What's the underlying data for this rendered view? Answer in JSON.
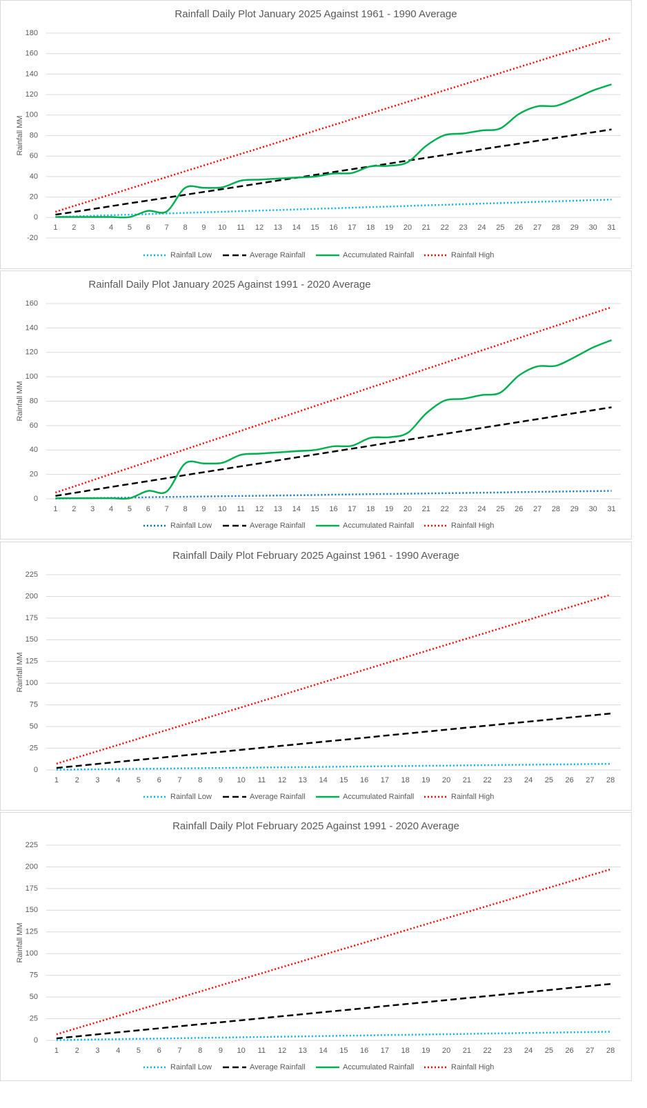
{
  "chart_data": [
    {
      "type": "line",
      "title": "Rainfall Daily Plot January 2025 Against 1961 - 1990 Average",
      "y_label": "Rainfall MM",
      "categories": [
        1,
        2,
        3,
        4,
        5,
        6,
        7,
        8,
        9,
        10,
        11,
        12,
        13,
        14,
        15,
        16,
        17,
        18,
        19,
        20,
        21,
        22,
        23,
        24,
        25,
        26,
        27,
        28,
        29,
        30,
        31
      ],
      "ylim": [
        -20,
        180
      ],
      "yticks": [
        -20,
        0,
        20,
        40,
        60,
        80,
        100,
        120,
        140,
        160,
        180
      ],
      "grid": true,
      "legend": "bottom",
      "series": [
        {
          "name": "Rainfall Low",
          "color": "#00b0f0",
          "dash": "dotted",
          "values": [
            0.6,
            1.1,
            1.7,
            2.3,
            2.8,
            3.4,
            4.0,
            4.5,
            5.1,
            5.6,
            6.2,
            6.8,
            7.3,
            7.9,
            8.5,
            9.0,
            9.6,
            10.2,
            10.7,
            11.3,
            11.9,
            12.4,
            13.0,
            13.6,
            14.1,
            14.7,
            15.3,
            15.8,
            16.4,
            17.0,
            17.5
          ]
        },
        {
          "name": "Average Rainfall",
          "color": "#000000",
          "dash": "dashed",
          "values": [
            2.8,
            5.5,
            8.3,
            11.1,
            13.9,
            16.6,
            19.4,
            22.2,
            25.0,
            27.7,
            30.5,
            33.3,
            36.1,
            38.8,
            41.6,
            44.4,
            47.2,
            49.9,
            52.7,
            55.5,
            58.3,
            61.0,
            63.8,
            66.6,
            69.4,
            72.1,
            74.9,
            77.7,
            80.5,
            83.2,
            86.0
          ]
        },
        {
          "name": "Accumulated Rainfall",
          "color": "#00b050",
          "dash": "solid",
          "values": [
            0.5,
            0.5,
            0.5,
            0.5,
            0.5,
            6.5,
            6,
            29,
            29,
            29.5,
            36,
            37,
            38,
            39,
            40,
            43,
            43.5,
            50,
            50.5,
            54,
            70,
            80.5,
            82,
            85,
            87,
            101,
            108.5,
            109,
            116,
            124,
            130
          ]
        },
        {
          "name": "Rainfall High",
          "color": "#ff0000",
          "dash": "dotted",
          "values": [
            5.6,
            11.3,
            16.9,
            22.6,
            28.2,
            33.9,
            39.5,
            45.2,
            50.8,
            56.5,
            62.1,
            67.7,
            73.4,
            79.0,
            84.7,
            90.3,
            96.0,
            101.6,
            107.3,
            112.9,
            118.5,
            124.2,
            129.8,
            135.5,
            141.1,
            146.8,
            152.4,
            158.1,
            163.7,
            169.4,
            175.0
          ]
        }
      ]
    },
    {
      "type": "line",
      "title": "Rainfall Daily Plot January 2025 Against 1991 - 2020 Average",
      "y_label": "Rainfall MM",
      "categories": [
        1,
        2,
        3,
        4,
        5,
        6,
        7,
        8,
        9,
        10,
        11,
        12,
        13,
        14,
        15,
        16,
        17,
        18,
        19,
        20,
        21,
        22,
        23,
        24,
        25,
        26,
        27,
        28,
        29,
        30,
        31
      ],
      "ylim": [
        0,
        160
      ],
      "yticks": [
        0,
        20,
        40,
        60,
        80,
        100,
        120,
        140,
        160
      ],
      "grid": true,
      "legend": "bottom",
      "series": [
        {
          "name": "Rainfall Low",
          "color": "#0070c0",
          "dash": "dotted",
          "values": [
            0.2,
            0.4,
            0.6,
            0.8,
            1.0,
            1.3,
            1.5,
            1.7,
            1.9,
            2.1,
            2.3,
            2.5,
            2.7,
            2.9,
            3.1,
            3.4,
            3.6,
            3.8,
            4.0,
            4.2,
            4.4,
            4.6,
            4.8,
            5.0,
            5.2,
            5.5,
            5.7,
            5.9,
            6.1,
            6.3,
            6.5
          ]
        },
        {
          "name": "Average Rainfall",
          "color": "#000000",
          "dash": "dashed",
          "values": [
            2.4,
            4.8,
            7.3,
            9.7,
            12.1,
            14.5,
            16.9,
            19.4,
            21.8,
            24.2,
            26.6,
            29.0,
            31.5,
            33.9,
            36.3,
            38.7,
            41.1,
            43.5,
            46.0,
            48.4,
            50.8,
            53.2,
            55.6,
            58.1,
            60.5,
            62.9,
            65.3,
            67.7,
            70.2,
            72.6,
            75.0
          ]
        },
        {
          "name": "Accumulated Rainfall",
          "color": "#00b050",
          "dash": "solid",
          "values": [
            0.5,
            0.5,
            0.5,
            0.5,
            0.5,
            6.5,
            6,
            29,
            29,
            29.5,
            36,
            37,
            38,
            39,
            40,
            43,
            43.5,
            50,
            50.5,
            54,
            70,
            80.5,
            82,
            85,
            87,
            101,
            108.5,
            109,
            116,
            124,
            130
          ]
        },
        {
          "name": "Rainfall High",
          "color": "#ff0000",
          "dash": "dotted",
          "values": [
            5.1,
            10.1,
            15.2,
            20.3,
            25.3,
            30.4,
            35.5,
            40.5,
            45.6,
            50.6,
            55.7,
            60.8,
            65.8,
            70.9,
            76.0,
            81.0,
            86.1,
            91.2,
            96.2,
            101.3,
            106.4,
            111.4,
            116.5,
            121.6,
            126.6,
            131.7,
            136.8,
            141.8,
            146.9,
            152.0,
            157.0
          ]
        }
      ]
    },
    {
      "type": "line",
      "title": "Rainfall Daily Plot February 2025 Against 1961 - 1990 Average",
      "y_label": "Rainfall MM",
      "categories": [
        1,
        2,
        3,
        4,
        5,
        6,
        7,
        8,
        9,
        10,
        11,
        12,
        13,
        14,
        15,
        16,
        17,
        18,
        19,
        20,
        21,
        22,
        23,
        24,
        25,
        26,
        27,
        28
      ],
      "ylim": [
        0,
        225
      ],
      "yticks": [
        0,
        25,
        50,
        75,
        100,
        125,
        150,
        175,
        200,
        225
      ],
      "grid": true,
      "legend": "bottom",
      "series": [
        {
          "name": "Rainfall Low",
          "color": "#00b0f0",
          "dash": "dotted",
          "values": [
            0.3,
            0.5,
            0.8,
            1.0,
            1.3,
            1.5,
            1.8,
            2.0,
            2.3,
            2.5,
            2.8,
            3.0,
            3.3,
            3.5,
            3.8,
            4.0,
            4.3,
            4.5,
            4.8,
            5.0,
            5.3,
            5.5,
            5.8,
            6.0,
            6.3,
            6.5,
            6.8,
            7.0
          ]
        },
        {
          "name": "Average Rainfall",
          "color": "#000000",
          "dash": "dashed",
          "values": [
            2.3,
            4.6,
            7.0,
            9.3,
            11.6,
            13.9,
            16.3,
            18.6,
            20.9,
            23.2,
            25.5,
            27.9,
            30.2,
            32.5,
            34.8,
            37.1,
            39.5,
            41.8,
            44.1,
            46.4,
            48.8,
            51.1,
            53.4,
            55.7,
            58.0,
            60.4,
            62.7,
            65.0
          ]
        },
        {
          "name": "Accumulated Rainfall",
          "color": "#00b050",
          "dash": "solid",
          "values": [
            null,
            null,
            null,
            null,
            null,
            null,
            null,
            null,
            null,
            null,
            null,
            null,
            null,
            null,
            null,
            null,
            null,
            null,
            null,
            null,
            null,
            null,
            null,
            null,
            null,
            null,
            null,
            null
          ]
        },
        {
          "name": "Rainfall High",
          "color": "#ff0000",
          "dash": "dotted",
          "values": [
            7.2,
            14.4,
            21.6,
            28.8,
            36.1,
            43.3,
            50.5,
            57.7,
            64.9,
            72.1,
            79.3,
            86.5,
            93.7,
            101.0,
            108.2,
            115.4,
            122.6,
            129.8,
            137.0,
            144.2,
            151.4,
            158.6,
            165.8,
            173.0,
            180.3,
            187.5,
            194.7,
            201.9
          ]
        }
      ]
    },
    {
      "type": "line",
      "title": "Rainfall Daily Plot February 2025 Against 1991 - 2020 Average",
      "y_label": "Rainfall MM",
      "categories": [
        1,
        2,
        3,
        4,
        5,
        6,
        7,
        8,
        9,
        10,
        11,
        12,
        13,
        14,
        15,
        16,
        17,
        18,
        19,
        20,
        21,
        22,
        23,
        24,
        25,
        26,
        27,
        28
      ],
      "ylim": [
        0,
        225
      ],
      "yticks": [
        0,
        25,
        50,
        75,
        100,
        125,
        150,
        175,
        200,
        225
      ],
      "grid": true,
      "legend": "bottom",
      "series": [
        {
          "name": "Rainfall Low",
          "color": "#00b0f0",
          "dash": "dotted",
          "values": [
            0.4,
            0.7,
            1.1,
            1.4,
            1.8,
            2.1,
            2.5,
            2.9,
            3.2,
            3.6,
            3.9,
            4.3,
            4.6,
            5.0,
            5.4,
            5.7,
            6.1,
            6.4,
            6.8,
            7.1,
            7.5,
            7.9,
            8.2,
            8.6,
            8.9,
            9.3,
            9.6,
            10.0
          ]
        },
        {
          "name": "Average Rainfall",
          "color": "#000000",
          "dash": "dashed",
          "values": [
            2.3,
            4.6,
            7.0,
            9.3,
            11.6,
            13.9,
            16.3,
            18.6,
            20.9,
            23.2,
            25.5,
            27.9,
            30.2,
            32.5,
            34.8,
            37.1,
            39.5,
            41.8,
            44.1,
            46.4,
            48.8,
            51.1,
            53.4,
            55.7,
            58.0,
            60.4,
            62.7,
            65.0
          ]
        },
        {
          "name": "Accumulated Rainfall",
          "color": "#00b050",
          "dash": "solid",
          "values": [
            null,
            null,
            null,
            null,
            null,
            null,
            null,
            null,
            null,
            null,
            null,
            null,
            null,
            null,
            null,
            null,
            null,
            null,
            null,
            null,
            null,
            null,
            null,
            null,
            null,
            null,
            null,
            null
          ]
        },
        {
          "name": "Rainfall High",
          "color": "#ff0000",
          "dash": "dotted",
          "values": [
            7.0,
            14.1,
            21.1,
            28.2,
            35.2,
            42.2,
            49.3,
            56.3,
            63.4,
            70.4,
            77.4,
            84.5,
            91.5,
            98.6,
            105.6,
            112.6,
            119.7,
            126.7,
            133.8,
            140.8,
            147.8,
            154.9,
            161.9,
            169.0,
            176.0,
            183.0,
            190.1,
            197.1
          ]
        }
      ]
    }
  ]
}
